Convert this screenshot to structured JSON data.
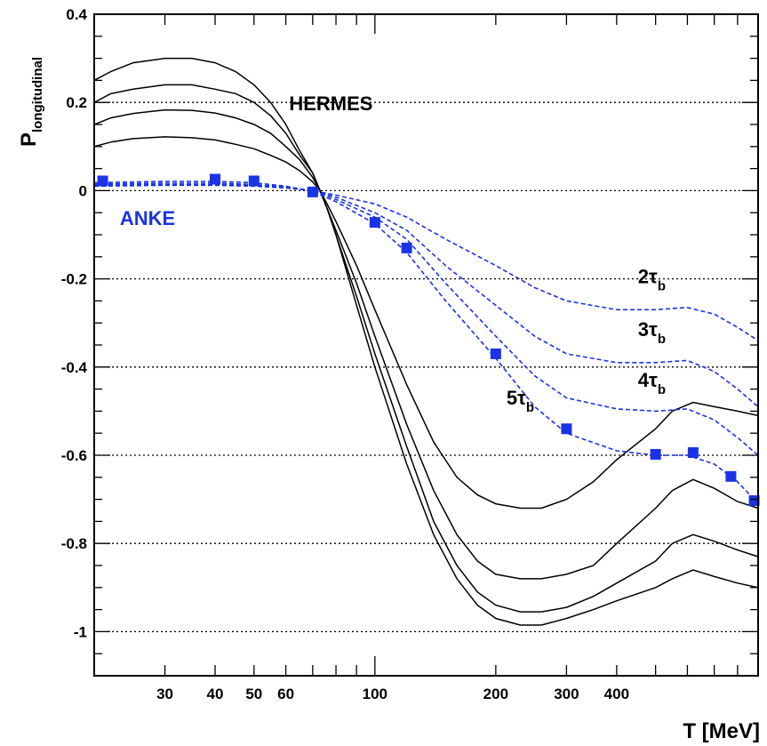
{
  "chart_data": {
    "type": "line",
    "xscale": "log",
    "xlabel": "T [MeV]",
    "ylabel_main": "P",
    "ylabel_sub": "longitudinal",
    "xlim": [
      20,
      900
    ],
    "ylim": [
      -1.1,
      0.4
    ],
    "grid": "horizontal dotted at y ticks",
    "x_ticks": [
      30,
      40,
      50,
      60,
      100,
      200,
      300,
      400
    ],
    "y_ticks": [
      {
        "v": 0.4,
        "label": "0.4"
      },
      {
        "v": 0.2,
        "label": "0.2"
      },
      {
        "v": 0,
        "label": "0"
      },
      {
        "v": -0.2,
        "label": "-0.2"
      },
      {
        "v": -0.4,
        "label": "-0.4"
      },
      {
        "v": -0.6,
        "label": "-0.6"
      },
      {
        "v": -0.8,
        "label": "-0.8"
      },
      {
        "v": -1.0,
        "label": "-1"
      }
    ],
    "annotations": [
      {
        "id": "hermes",
        "text": "HERMES",
        "x": 75,
        "y": 0.19,
        "color": "#000000"
      },
      {
        "id": "anke",
        "text": "ANKE",
        "x": 27,
        "y": -0.07,
        "color": "#1a33e6"
      }
    ],
    "tau_labels": [
      {
        "main": "2τ",
        "sub": "b",
        "x": 425,
        "y": -0.21
      },
      {
        "main": "3τ",
        "sub": "b",
        "x": 425,
        "y": -0.33
      },
      {
        "main": "4τ",
        "sub": "b",
        "x": 425,
        "y": -0.445
      },
      {
        "main": "5τ",
        "sub": "b",
        "x": 200,
        "y": -0.485
      }
    ],
    "series": [
      {
        "style": "solid",
        "color": "#000000",
        "points": [
          [
            20,
            0.25
          ],
          [
            22,
            0.27
          ],
          [
            25,
            0.29
          ],
          [
            30,
            0.3
          ],
          [
            35,
            0.3
          ],
          [
            40,
            0.29
          ],
          [
            45,
            0.27
          ],
          [
            50,
            0.24
          ],
          [
            55,
            0.2
          ],
          [
            60,
            0.15
          ],
          [
            65,
            0.09
          ],
          [
            70,
            0.04
          ],
          [
            73,
            0.0
          ],
          [
            76,
            -0.04
          ],
          [
            80,
            -0.1
          ],
          [
            90,
            -0.26
          ],
          [
            100,
            -0.4
          ],
          [
            120,
            -0.62
          ],
          [
            140,
            -0.78
          ],
          [
            160,
            -0.88
          ],
          [
            180,
            -0.94
          ],
          [
            200,
            -0.97
          ],
          [
            230,
            -0.985
          ],
          [
            260,
            -0.985
          ],
          [
            300,
            -0.97
          ],
          [
            350,
            -0.95
          ],
          [
            400,
            -0.93
          ],
          [
            500,
            -0.9
          ],
          [
            550,
            -0.88
          ],
          [
            620,
            -0.86
          ],
          [
            700,
            -0.875
          ],
          [
            800,
            -0.89
          ],
          [
            900,
            -0.9
          ]
        ]
      },
      {
        "style": "solid",
        "color": "#000000",
        "points": [
          [
            20,
            0.2
          ],
          [
            22,
            0.22
          ],
          [
            25,
            0.23
          ],
          [
            30,
            0.24
          ],
          [
            35,
            0.24
          ],
          [
            40,
            0.23
          ],
          [
            45,
            0.22
          ],
          [
            50,
            0.2
          ],
          [
            55,
            0.17
          ],
          [
            60,
            0.13
          ],
          [
            65,
            0.08
          ],
          [
            70,
            0.04
          ],
          [
            73,
            0.0
          ],
          [
            76,
            -0.04
          ],
          [
            80,
            -0.1
          ],
          [
            90,
            -0.24
          ],
          [
            100,
            -0.37
          ],
          [
            120,
            -0.58
          ],
          [
            140,
            -0.75
          ],
          [
            160,
            -0.85
          ],
          [
            180,
            -0.91
          ],
          [
            200,
            -0.94
          ],
          [
            230,
            -0.955
          ],
          [
            260,
            -0.955
          ],
          [
            300,
            -0.945
          ],
          [
            350,
            -0.92
          ],
          [
            400,
            -0.89
          ],
          [
            500,
            -0.84
          ],
          [
            550,
            -0.8
          ],
          [
            620,
            -0.78
          ],
          [
            700,
            -0.795
          ],
          [
            800,
            -0.815
          ],
          [
            900,
            -0.83
          ]
        ]
      },
      {
        "style": "solid",
        "color": "#000000",
        "points": [
          [
            20,
            0.15
          ],
          [
            22,
            0.165
          ],
          [
            25,
            0.175
          ],
          [
            30,
            0.183
          ],
          [
            35,
            0.182
          ],
          [
            40,
            0.176
          ],
          [
            45,
            0.165
          ],
          [
            50,
            0.15
          ],
          [
            55,
            0.13
          ],
          [
            60,
            0.1
          ],
          [
            65,
            0.07
          ],
          [
            70,
            0.03
          ],
          [
            73,
            0.0
          ],
          [
            76,
            -0.04
          ],
          [
            80,
            -0.09
          ],
          [
            90,
            -0.21
          ],
          [
            100,
            -0.33
          ],
          [
            120,
            -0.53
          ],
          [
            140,
            -0.68
          ],
          [
            160,
            -0.78
          ],
          [
            180,
            -0.84
          ],
          [
            200,
            -0.87
          ],
          [
            230,
            -0.88
          ],
          [
            260,
            -0.88
          ],
          [
            300,
            -0.87
          ],
          [
            350,
            -0.85
          ],
          [
            400,
            -0.8
          ],
          [
            500,
            -0.72
          ],
          [
            550,
            -0.68
          ],
          [
            620,
            -0.655
          ],
          [
            700,
            -0.675
          ],
          [
            800,
            -0.705
          ],
          [
            900,
            -0.72
          ]
        ]
      },
      {
        "style": "solid",
        "color": "#000000",
        "points": [
          [
            20,
            0.1
          ],
          [
            22,
            0.11
          ],
          [
            25,
            0.118
          ],
          [
            30,
            0.122
          ],
          [
            35,
            0.12
          ],
          [
            40,
            0.115
          ],
          [
            45,
            0.105
          ],
          [
            50,
            0.095
          ],
          [
            55,
            0.08
          ],
          [
            60,
            0.065
          ],
          [
            65,
            0.045
          ],
          [
            70,
            0.02
          ],
          [
            73,
            0.0
          ],
          [
            76,
            -0.03
          ],
          [
            80,
            -0.07
          ],
          [
            90,
            -0.17
          ],
          [
            100,
            -0.27
          ],
          [
            120,
            -0.44
          ],
          [
            140,
            -0.57
          ],
          [
            160,
            -0.65
          ],
          [
            180,
            -0.69
          ],
          [
            200,
            -0.71
          ],
          [
            230,
            -0.72
          ],
          [
            260,
            -0.72
          ],
          [
            300,
            -0.7
          ],
          [
            350,
            -0.66
          ],
          [
            400,
            -0.61
          ],
          [
            500,
            -0.54
          ],
          [
            550,
            -0.5
          ],
          [
            620,
            -0.48
          ],
          [
            700,
            -0.49
          ],
          [
            800,
            -0.5
          ],
          [
            900,
            -0.51
          ]
        ]
      },
      {
        "style": "dashed",
        "color": "#1a33e6",
        "points": [
          [
            20,
            0.01
          ],
          [
            30,
            0.012
          ],
          [
            40,
            0.012
          ],
          [
            50,
            0.01
          ],
          [
            60,
            0.006
          ],
          [
            70,
            0.0
          ],
          [
            80,
            -0.01
          ],
          [
            100,
            -0.03
          ],
          [
            120,
            -0.06
          ],
          [
            150,
            -0.11
          ],
          [
            200,
            -0.17
          ],
          [
            250,
            -0.22
          ],
          [
            300,
            -0.25
          ],
          [
            400,
            -0.27
          ],
          [
            500,
            -0.27
          ],
          [
            600,
            -0.265
          ],
          [
            700,
            -0.28
          ],
          [
            800,
            -0.31
          ],
          [
            900,
            -0.34
          ]
        ]
      },
      {
        "style": "dashed",
        "color": "#1a33e6",
        "points": [
          [
            20,
            0.012
          ],
          [
            30,
            0.014
          ],
          [
            40,
            0.014
          ],
          [
            50,
            0.012
          ],
          [
            60,
            0.007
          ],
          [
            70,
            0.0
          ],
          [
            80,
            -0.015
          ],
          [
            100,
            -0.05
          ],
          [
            120,
            -0.09
          ],
          [
            150,
            -0.17
          ],
          [
            200,
            -0.26
          ],
          [
            250,
            -0.33
          ],
          [
            300,
            -0.37
          ],
          [
            400,
            -0.39
          ],
          [
            500,
            -0.39
          ],
          [
            600,
            -0.385
          ],
          [
            700,
            -0.41
          ],
          [
            800,
            -0.45
          ],
          [
            900,
            -0.49
          ]
        ]
      },
      {
        "style": "dashed",
        "color": "#1a33e6",
        "points": [
          [
            20,
            0.015
          ],
          [
            30,
            0.017
          ],
          [
            40,
            0.017
          ],
          [
            50,
            0.014
          ],
          [
            60,
            0.008
          ],
          [
            70,
            0.0
          ],
          [
            80,
            -0.02
          ],
          [
            100,
            -0.06
          ],
          [
            120,
            -0.11
          ],
          [
            150,
            -0.21
          ],
          [
            200,
            -0.33
          ],
          [
            250,
            -0.42
          ],
          [
            300,
            -0.47
          ],
          [
            400,
            -0.495
          ],
          [
            500,
            -0.5
          ],
          [
            600,
            -0.495
          ],
          [
            700,
            -0.52
          ],
          [
            800,
            -0.56
          ],
          [
            900,
            -0.6
          ]
        ]
      },
      {
        "style": "dashed",
        "color": "#1a33e6",
        "points": [
          [
            20,
            0.018
          ],
          [
            30,
            0.021
          ],
          [
            40,
            0.021
          ],
          [
            50,
            0.018
          ],
          [
            60,
            0.01
          ],
          [
            70,
            -0.002
          ],
          [
            80,
            -0.025
          ],
          [
            100,
            -0.075
          ],
          [
            120,
            -0.14
          ],
          [
            150,
            -0.25
          ],
          [
            200,
            -0.38
          ],
          [
            250,
            -0.49
          ],
          [
            300,
            -0.55
          ],
          [
            400,
            -0.59
          ],
          [
            500,
            -0.6
          ],
          [
            600,
            -0.6
          ],
          [
            700,
            -0.62
          ],
          [
            800,
            -0.66
          ],
          [
            900,
            -0.71
          ]
        ]
      }
    ],
    "markers": {
      "color": "#1a33e6",
      "points": [
        [
          21,
          0.022
        ],
        [
          40,
          0.026
        ],
        [
          50,
          0.022
        ],
        [
          70,
          -0.003
        ],
        [
          100,
          -0.072
        ],
        [
          120,
          -0.13
        ],
        [
          200,
          -0.37
        ],
        [
          300,
          -0.54
        ],
        [
          500,
          -0.598
        ],
        [
          620,
          -0.594
        ],
        [
          770,
          -0.648
        ],
        [
          880,
          -0.703
        ]
      ]
    }
  }
}
